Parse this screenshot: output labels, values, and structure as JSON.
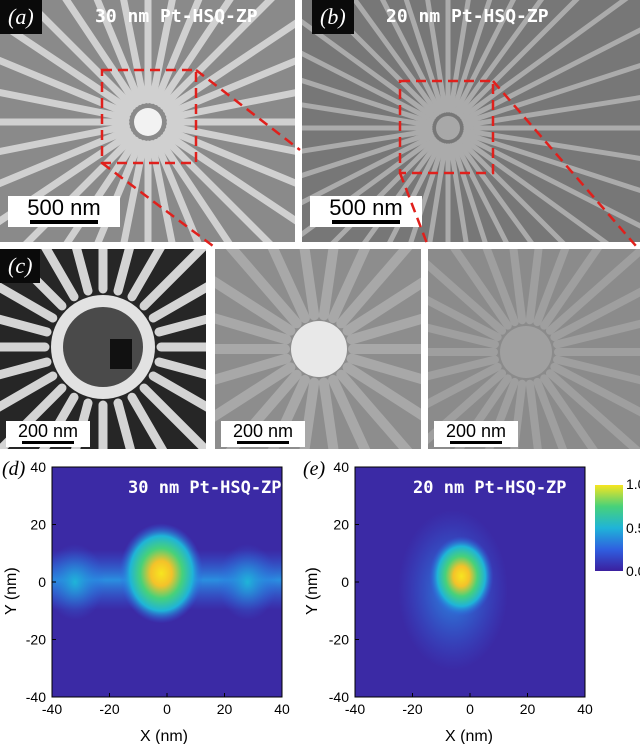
{
  "panels": {
    "a": {
      "label": "(a)",
      "title": "30 nm Pt-HSQ-ZP",
      "scalebar": "500 nm"
    },
    "b": {
      "label": "(b)",
      "title": "20 nm Pt-HSQ-ZP",
      "scalebar": "500 nm"
    },
    "c": {
      "label": "(c)",
      "scalebar": "200 nm"
    },
    "zoom_a": {
      "scalebar": "200 nm"
    },
    "zoom_b": {
      "scalebar": "200 nm"
    },
    "d": {
      "label": "(d)",
      "title": "30 nm Pt-HSQ-ZP"
    },
    "e": {
      "label": "(e)",
      "title": "20 nm Pt-HSQ-ZP"
    }
  },
  "colors": {
    "zoom_box": "#e0201c",
    "colormap": [
      "#3b1f9e",
      "#2f5fe0",
      "#1fb4d8",
      "#47d17a",
      "#f4c22a",
      "#f7e51f"
    ]
  },
  "chart_data": [
    {
      "type": "heatmap",
      "title": "30 nm Pt-HSQ-ZP",
      "xlabel": "X (nm)",
      "ylabel": "Y (nm)",
      "xlim": [
        -40,
        40
      ],
      "ylim": [
        -40,
        40
      ],
      "x_ticks": [
        "-40",
        "-20",
        "0",
        "20",
        "40"
      ],
      "y_ticks": [
        "40",
        "20",
        "0",
        "-20",
        "-40"
      ],
      "peak": {
        "x": -2,
        "y": 3,
        "value": 1.0
      },
      "side_lobes": [
        {
          "x": -32,
          "y": 0,
          "value": 0.35
        },
        {
          "x": 28,
          "y": 0,
          "value": 0.35
        }
      ]
    },
    {
      "type": "heatmap",
      "title": "20 nm Pt-HSQ-ZP",
      "xlabel": "X (nm)",
      "ylabel": "Y (nm)",
      "xlim": [
        -40,
        40
      ],
      "ylim": [
        -40,
        40
      ],
      "x_ticks": [
        "-40",
        "-20",
        "0",
        "20",
        "40"
      ],
      "y_ticks": [
        "40",
        "20",
        "0",
        "-20",
        "-40"
      ],
      "peak": {
        "x": -3,
        "y": 2,
        "value": 1.0
      },
      "colorbar": {
        "min": 0.0,
        "max": 1.0,
        "ticks": [
          "1.0",
          "0.5",
          "0.0"
        ]
      }
    }
  ]
}
